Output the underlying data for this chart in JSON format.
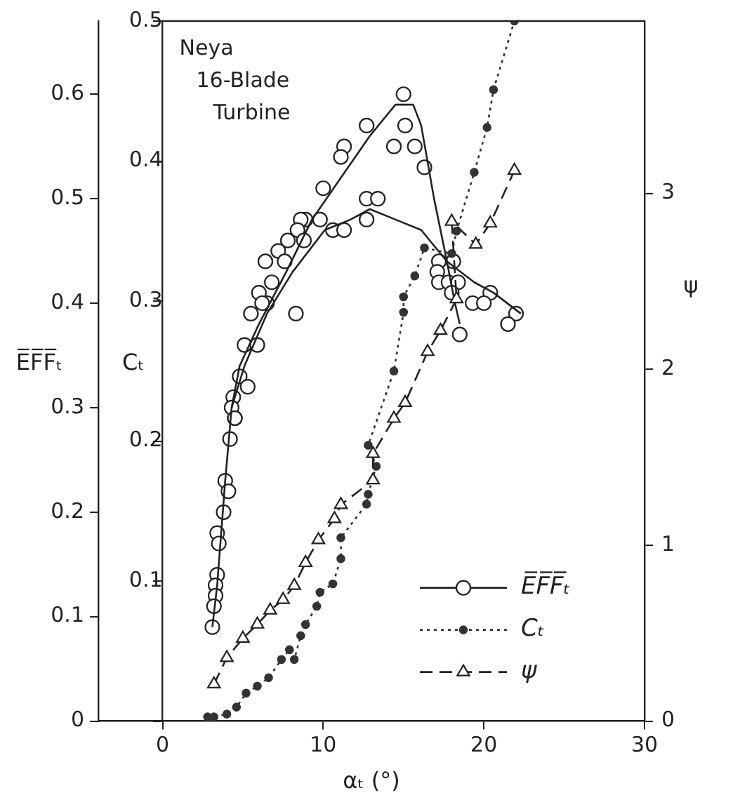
{
  "chart_data": {
    "type": "line",
    "xlabel": "αₜ (°)",
    "ylabel": "E̅F̅F̅ₜ",
    "y2label": "Cₜ",
    "y3label": "ψ",
    "annotations": [
      "Neya\n16-Blade\nTurbine"
    ],
    "xlim": [
      -4,
      30
    ],
    "xticks": [
      0,
      10,
      20,
      30
    ],
    "ylim": [
      0,
      0.67
    ],
    "yticks": [
      0,
      0.1,
      0.2,
      0.3,
      0.4,
      0.5,
      0.6
    ],
    "y2lim": [
      0,
      0.5
    ],
    "y2ticks": [
      {
        "value": 0,
        "label": null
      },
      0.1,
      0.2,
      0.3,
      0.4,
      0.5
    ],
    "y3lim": [
      0,
      3.98
    ],
    "y3ticks": [
      0,
      1,
      2,
      3
    ],
    "grid": false,
    "legend": "bottom right",
    "series": [
      {
        "name": "E̅F̅F̅ₜ",
        "type": "scatter",
        "marker": "circle",
        "line_style": "solid",
        "color": "#222222",
        "x": [
          15.0,
          12.7,
          11.3,
          11.1,
          10.0,
          15.1,
          14.4,
          15.7,
          16.3,
          8.9,
          8.6,
          8.4,
          7.8,
          7.2,
          7.6,
          6.4,
          6.8,
          6.0,
          6.5,
          5.5,
          6.2,
          5.1,
          5.9,
          4.8,
          5.3,
          4.4,
          4.5,
          12.7,
          13.4,
          12.7,
          9.8,
          10.6,
          11.3,
          8.8,
          8.3,
          17.2,
          18.1,
          17.1,
          17.2,
          17.8,
          18.4,
          18.0,
          20.4,
          19.3,
          20.0,
          22.0,
          21.5,
          18.5,
          4.3,
          4.5,
          4.2,
          3.9,
          4.1,
          3.8,
          3.4,
          3.5,
          3.4,
          3.3,
          3.3,
          3.2,
          3.1
        ],
        "values": [
          0.6,
          0.57,
          0.55,
          0.54,
          0.51,
          0.57,
          0.55,
          0.55,
          0.53,
          0.48,
          0.48,
          0.47,
          0.46,
          0.45,
          0.44,
          0.44,
          0.42,
          0.41,
          0.4,
          0.39,
          0.4,
          0.36,
          0.36,
          0.33,
          0.32,
          0.31,
          0.29,
          0.5,
          0.5,
          0.48,
          0.48,
          0.47,
          0.47,
          0.46,
          0.39,
          0.44,
          0.44,
          0.43,
          0.42,
          0.42,
          0.42,
          0.41,
          0.41,
          0.4,
          0.4,
          0.39,
          0.38,
          0.37,
          0.3,
          0.29,
          0.27,
          0.23,
          0.22,
          0.2,
          0.18,
          0.17,
          0.14,
          0.13,
          0.12,
          0.11,
          0.09
        ]
      },
      {
        "type": "line",
        "marker": "none",
        "line_style": "solid",
        "color": "#222222",
        "x": [
          3.1,
          3.4,
          3.6,
          3.9,
          4.3,
          4.8,
          6.0,
          7.7,
          9.3,
          11.1,
          12.9,
          14.5,
          15.6,
          16.1,
          16.9,
          17.7,
          18.2,
          18.5
        ],
        "values": [
          0.09,
          0.13,
          0.17,
          0.23,
          0.3,
          0.34,
          0.38,
          0.43,
          0.48,
          0.52,
          0.56,
          0.59,
          0.59,
          0.57,
          0.5,
          0.44,
          0.4,
          0.38
        ]
      },
      {
        "type": "line",
        "marker": "none",
        "line_style": "solid",
        "color": "#222222",
        "x": [
          4.3,
          5.1,
          6.5,
          8.1,
          10.1,
          11.7,
          12.9,
          14.5,
          16.1,
          17.7,
          19.4,
          20.6,
          22.3
        ],
        "values": [
          0.3,
          0.34,
          0.39,
          0.43,
          0.47,
          0.48,
          0.49,
          0.48,
          0.47,
          0.44,
          0.42,
          0.41,
          0.39
        ]
      },
      {
        "name": "Cₜ",
        "type": "line",
        "axis": "y2",
        "marker": "circle",
        "line_style": "dotted",
        "color": "#333333",
        "x": [
          2.8,
          3.2,
          4.0,
          4.6,
          5.2,
          5.9,
          6.6,
          7.4,
          7.9,
          8.2,
          8.6,
          8.9,
          9.6,
          9.8,
          10.6,
          11.1,
          11.1,
          12.7,
          12.8,
          13.3,
          12.8,
          14.4,
          15.0,
          15.0,
          15.7,
          16.3,
          18.0,
          18.3,
          19.4,
          20.2,
          20.6,
          21.9
        ],
        "values": [
          0.003,
          0.003,
          0.005,
          0.01,
          0.02,
          0.025,
          0.031,
          0.044,
          0.051,
          0.044,
          0.061,
          0.069,
          0.082,
          0.092,
          0.098,
          0.116,
          0.131,
          0.155,
          0.162,
          0.182,
          0.197,
          0.25,
          0.292,
          0.303,
          0.318,
          0.338,
          0.334,
          0.35,
          0.392,
          0.424,
          0.451,
          0.5
        ]
      },
      {
        "name": "ψ",
        "type": "line",
        "axis": "y3",
        "marker": "triangle",
        "line_style": "dashed",
        "color": "#222222",
        "x": [
          3.2,
          4.0,
          5.0,
          5.9,
          6.7,
          7.5,
          8.2,
          8.9,
          9.7,
          10.7,
          11.1,
          13.1,
          13.1,
          14.4,
          15.1,
          16.5,
          17.3,
          18.3,
          18.0,
          19.5,
          20.4,
          21.9
        ],
        "values": [
          0.21,
          0.36,
          0.47,
          0.55,
          0.63,
          0.69,
          0.77,
          0.9,
          1.03,
          1.15,
          1.23,
          1.37,
          1.52,
          1.72,
          1.81,
          2.1,
          2.22,
          2.4,
          2.84,
          2.71,
          2.83,
          3.13
        ]
      }
    ]
  }
}
